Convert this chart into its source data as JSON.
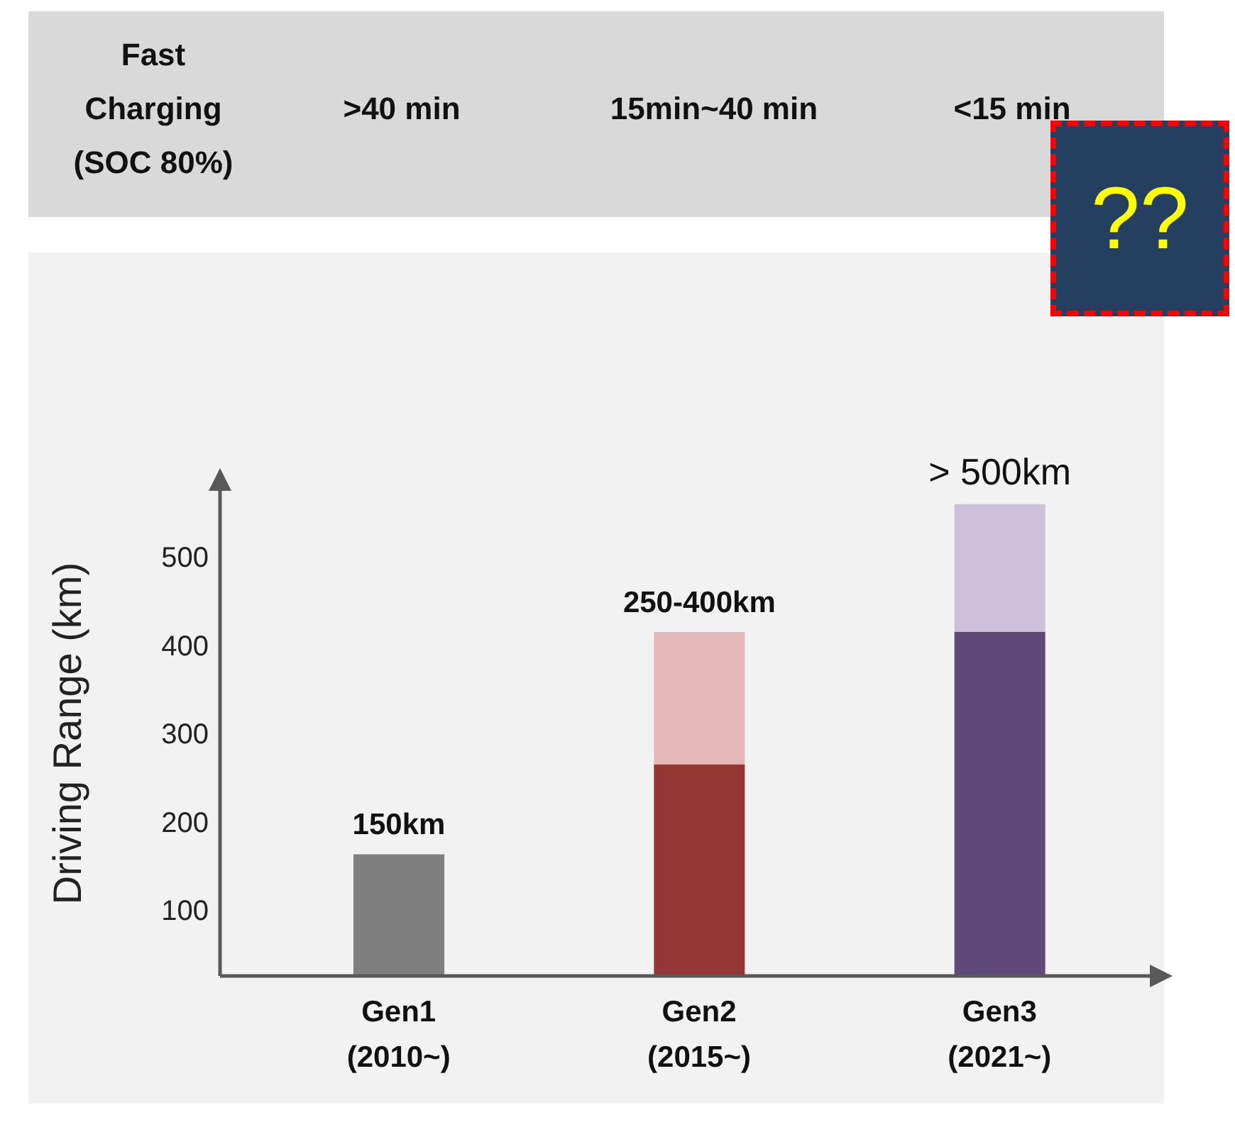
{
  "chart_data": {
    "type": "bar",
    "ylabel": "Driving Range (km)",
    "categories": [
      "Gen1 (2010~)",
      "Gen2 (2015~)",
      "Gen3 (2021~)"
    ],
    "series": [
      {
        "colors": [
          "#7f7f7f",
          "#943634",
          "#604a7b"
        ],
        "values": [
          163,
          265,
          415
        ]
      },
      {
        "colors": [
          "#e6b8b7",
          "#e6b8b7",
          "#ccc0da"
        ],
        "values": [
          null,
          150,
          145
        ]
      }
    ],
    "stacked": true,
    "ylim": [
      25,
      575
    ],
    "yticks": [
      100,
      200,
      300,
      400,
      500
    ],
    "grid": false,
    "legend": false,
    "annotations": [
      "Fast Charging (SOC 80%)",
      ">40 min",
      "15min~40 min",
      "<15 min",
      "??",
      {
        "text": "150km",
        "x": "Gen1 (2010~)",
        "y": 163
      },
      {
        "text": "250-400km",
        "x": "Gen2 (2015~)",
        "y": 415
      },
      {
        "text": "> 500km",
        "x": "Gen3 (2021~)",
        "y": 560
      }
    ]
  }
}
